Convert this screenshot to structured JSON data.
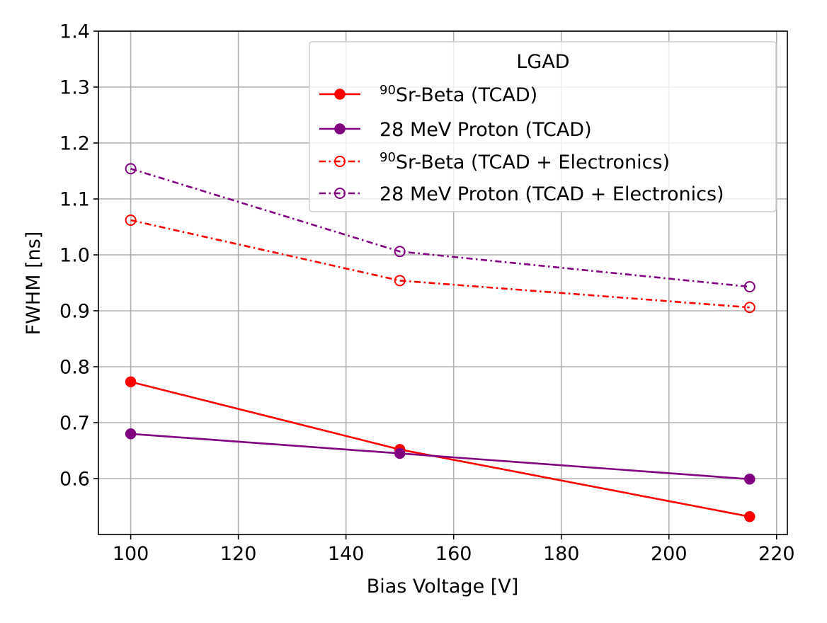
{
  "chart_data": {
    "type": "line",
    "xlabel": "Bias Voltage [V]",
    "ylabel": "FWHM [ns]",
    "xlim": [
      94,
      222
    ],
    "ylim": [
      0.5,
      1.4
    ],
    "xticks": [
      100,
      120,
      140,
      160,
      180,
      200,
      220
    ],
    "yticks": [
      0.6,
      0.7,
      0.8,
      0.9,
      1.0,
      1.1,
      1.2,
      1.3,
      1.4
    ],
    "xtick_labels": [
      "100",
      "120",
      "140",
      "160",
      "180",
      "200",
      "220"
    ],
    "ytick_labels": [
      "0.6",
      "0.7",
      "0.8",
      "0.9",
      "1.0",
      "1.1",
      "1.2",
      "1.3",
      "1.4"
    ],
    "grid": true,
    "legend": {
      "title": "LGAD",
      "placement": "top-right"
    },
    "series": [
      {
        "name": "90Sr-Beta (TCAD)",
        "label_sup": "90",
        "label_main": "Sr-Beta (TCAD)",
        "color": "#ff0000",
        "line_style": "solid",
        "marker": "filled-circle",
        "x": [
          100,
          150,
          215
        ],
        "values": [
          0.773,
          0.652,
          0.532
        ]
      },
      {
        "name": "28 MeV Proton (TCAD)",
        "label_sup": "",
        "label_main": "28 MeV Proton (TCAD)",
        "color": "#800080",
        "line_style": "solid",
        "marker": "filled-circle",
        "x": [
          100,
          150,
          215
        ],
        "values": [
          0.68,
          0.645,
          0.599
        ]
      },
      {
        "name": "90Sr-Beta (TCAD + Electronics)",
        "label_sup": "90",
        "label_main": "Sr-Beta (TCAD + Electronics)",
        "color": "#ff0000",
        "line_style": "dashdot",
        "marker": "open-circle",
        "x": [
          100,
          150,
          215
        ],
        "values": [
          1.062,
          0.954,
          0.906
        ]
      },
      {
        "name": "28 MeV Proton (TCAD + Electronics)",
        "label_sup": "",
        "label_main": "28 MeV Proton (TCAD + Electronics)",
        "color": "#800080",
        "line_style": "dashdot",
        "marker": "open-circle",
        "x": [
          100,
          150,
          215
        ],
        "values": [
          1.154,
          1.006,
          0.943
        ]
      }
    ]
  }
}
